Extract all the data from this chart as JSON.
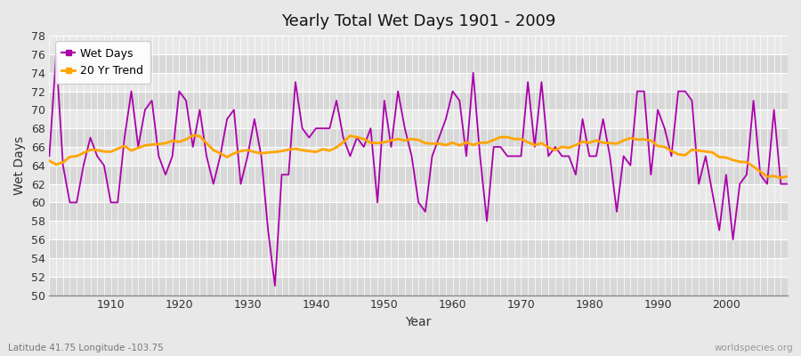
{
  "title": "Yearly Total Wet Days 1901 - 2009",
  "xlabel": "Year",
  "ylabel": "Wet Days",
  "lat_lon_label": "Latitude 41.75 Longitude -103.75",
  "source_label": "worldspecies.org",
  "line_color": "#aa00aa",
  "trend_color": "#FFA500",
  "bg_color": "#e8e8e8",
  "band_color_light": "#e8e8e8",
  "band_color_dark": "#d8d8d8",
  "grid_color": "#ffffff",
  "ylim": [
    50,
    78
  ],
  "xlim": [
    1901,
    2009
  ],
  "yticks": [
    50,
    52,
    54,
    56,
    58,
    60,
    62,
    64,
    66,
    68,
    70,
    72,
    74,
    76,
    78
  ],
  "xticks": [
    1910,
    1920,
    1930,
    1940,
    1950,
    1960,
    1970,
    1980,
    1990,
    2000
  ],
  "years": [
    1901,
    1902,
    1903,
    1904,
    1905,
    1906,
    1907,
    1908,
    1909,
    1910,
    1911,
    1912,
    1913,
    1914,
    1915,
    1916,
    1917,
    1918,
    1919,
    1920,
    1921,
    1922,
    1923,
    1924,
    1925,
    1926,
    1927,
    1928,
    1929,
    1930,
    1931,
    1932,
    1933,
    1934,
    1935,
    1936,
    1937,
    1938,
    1939,
    1940,
    1941,
    1942,
    1943,
    1944,
    1945,
    1946,
    1947,
    1948,
    1949,
    1950,
    1951,
    1952,
    1953,
    1954,
    1955,
    1956,
    1957,
    1958,
    1959,
    1960,
    1961,
    1962,
    1963,
    1964,
    1965,
    1966,
    1967,
    1968,
    1969,
    1970,
    1971,
    1972,
    1973,
    1974,
    1975,
    1976,
    1977,
    1978,
    1979,
    1980,
    1981,
    1982,
    1983,
    1984,
    1985,
    1986,
    1987,
    1988,
    1989,
    1990,
    1991,
    1992,
    1993,
    1994,
    1995,
    1996,
    1997,
    1998,
    1999,
    2000,
    2001,
    2002,
    2003,
    2004,
    2005,
    2006,
    2007,
    2008,
    2009
  ],
  "wet_days": [
    65,
    76,
    64,
    60,
    60,
    64,
    67,
    65,
    64,
    60,
    60,
    67,
    72,
    66,
    70,
    71,
    65,
    63,
    65,
    72,
    71,
    66,
    70,
    65,
    62,
    65,
    69,
    70,
    62,
    65,
    69,
    65,
    57,
    51,
    63,
    63,
    73,
    68,
    67,
    68,
    68,
    68,
    71,
    67,
    65,
    67,
    66,
    68,
    60,
    71,
    66,
    72,
    68,
    65,
    60,
    59,
    65,
    67,
    69,
    72,
    71,
    65,
    74,
    65,
    58,
    66,
    66,
    65,
    65,
    65,
    73,
    66,
    73,
    65,
    66,
    65,
    65,
    63,
    69,
    65,
    65,
    69,
    65,
    59,
    65,
    64,
    72,
    72,
    63,
    70,
    68,
    65,
    72,
    72,
    71,
    62,
    65,
    61,
    57,
    63,
    56,
    62,
    63,
    71,
    63,
    62,
    70,
    62,
    62
  ],
  "trend_window": 20
}
